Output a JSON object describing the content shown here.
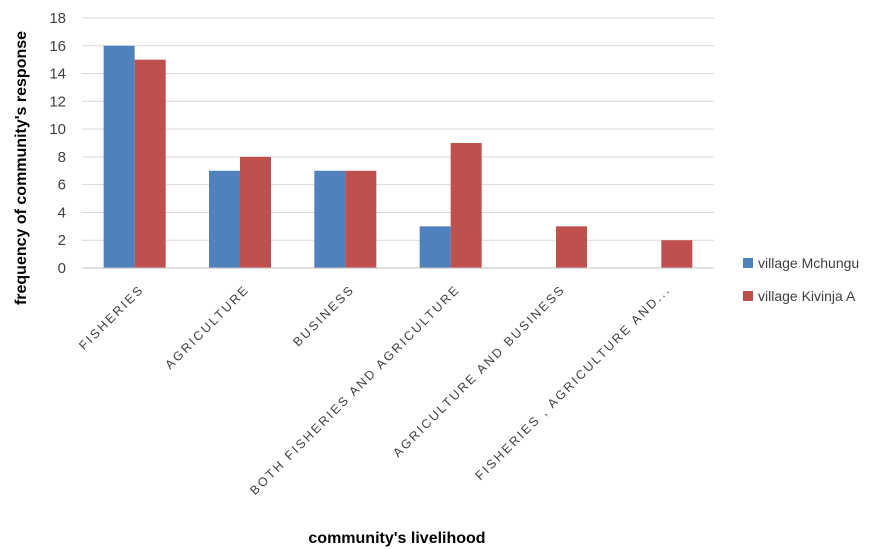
{
  "chart_data": {
    "type": "bar",
    "categories": [
      "FISHERIES",
      "AGRICULTURE",
      "BUSINESS",
      "BOTH FISHERIES AND AGRICULTURE",
      "AGRICULTURE AND BUSINESS",
      "FISHERIES , AGRICULTURE AND..."
    ],
    "series": [
      {
        "name": "village Mchungu",
        "color": "#4F81BD",
        "values": [
          16,
          7,
          7,
          3,
          0,
          0
        ]
      },
      {
        "name": "village Kivinja A",
        "color": "#C0504D",
        "values": [
          15,
          8,
          7,
          9,
          3,
          2
        ]
      }
    ],
    "xlabel": "community's livelihood",
    "ylabel": "frequency of community's  response",
    "ylim": [
      0,
      18
    ],
    "yticks": [
      0,
      2,
      4,
      6,
      8,
      10,
      12,
      14,
      16,
      18
    ],
    "grid": true,
    "legend_position": "right"
  }
}
